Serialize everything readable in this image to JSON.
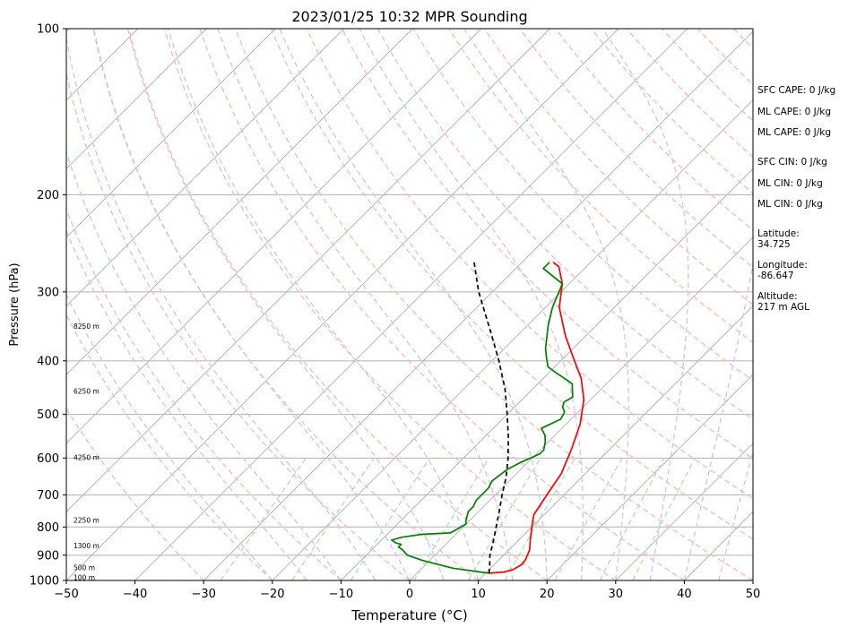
{
  "chart_data": {
    "type": "line",
    "title": "2023/01/25 10:32 MPR Sounding",
    "xlabel": "Temperature (°C)",
    "ylabel": "Pressure (hPa)",
    "xlim": [
      -50,
      50
    ],
    "ylim": [
      1000,
      100
    ],
    "y_scale": "log",
    "x_ticks": [
      "−50",
      "−40",
      "−30",
      "−20",
      "−10",
      "0",
      "10",
      "20",
      "30",
      "40",
      "50"
    ],
    "y_ticks": [
      "100",
      "200",
      "300",
      "400",
      "500",
      "600",
      "700",
      "800",
      "900",
      "1000"
    ],
    "grid": "horizontal at y ticks",
    "skew_deg": 45,
    "colors": {
      "temperature": "#ff0000",
      "dewpoint": "#008000",
      "parcel": "#000000",
      "isotherm": "#b0b0b0",
      "dry_adiabat": "#ffb6b6",
      "moist_adiabat": "#c8c8ff",
      "mixing_ratio": "#b8dcb8"
    },
    "series": [
      {
        "name": "",
        "role": "temperature",
        "color": "#ff0000",
        "points": [
          [
            10.5,
            970
          ],
          [
            12.5,
            965
          ],
          [
            13.5,
            955
          ],
          [
            14.0,
            935
          ],
          [
            13.8,
            915
          ],
          [
            13.0,
            880
          ],
          [
            11.5,
            840
          ],
          [
            10.0,
            800
          ],
          [
            8.5,
            760
          ],
          [
            7.5,
            700
          ],
          [
            6.5,
            640
          ],
          [
            4.5,
            580
          ],
          [
            2.0,
            520
          ],
          [
            -1.0,
            470
          ],
          [
            -4.5,
            430
          ],
          [
            -8.0,
            400
          ],
          [
            -13.0,
            360
          ],
          [
            -18.0,
            320
          ],
          [
            -21.0,
            290
          ],
          [
            -24.0,
            270
          ],
          [
            -25.5,
            265
          ]
        ]
      },
      {
        "name": "",
        "role": "dewpoint",
        "color": "#008000",
        "points": [
          [
            10.5,
            970
          ],
          [
            4.5,
            950
          ],
          [
            -1.0,
            920
          ],
          [
            -4.0,
            900
          ],
          [
            -5.5,
            880
          ],
          [
            -6.5,
            870
          ],
          [
            -6.5,
            860
          ],
          [
            -7.5,
            855
          ],
          [
            -8.5,
            845
          ],
          [
            -7.5,
            835
          ],
          [
            -5.0,
            825
          ],
          [
            -1.0,
            820
          ],
          [
            -0.5,
            805
          ],
          [
            0.0,
            790
          ],
          [
            -0.5,
            780
          ],
          [
            -1.5,
            750
          ],
          [
            -1.5,
            735
          ],
          [
            -2.0,
            715
          ],
          [
            -2.0,
            680
          ],
          [
            -2.5,
            660
          ],
          [
            -2.0,
            630
          ],
          [
            -1.0,
            610
          ],
          [
            0.5,
            590
          ],
          [
            0.5,
            580
          ],
          [
            -0.5,
            560
          ],
          [
            -1.5,
            545
          ],
          [
            -3.0,
            530
          ],
          [
            -1.5,
            510
          ],
          [
            -2.0,
            495
          ],
          [
            -3.0,
            485
          ],
          [
            -3.5,
            475
          ],
          [
            -3.0,
            465
          ],
          [
            -5.0,
            440
          ],
          [
            -9.0,
            420
          ],
          [
            -11.0,
            410
          ],
          [
            -12.5,
            395
          ],
          [
            -14.0,
            380
          ],
          [
            -17.0,
            345
          ],
          [
            -19.0,
            320
          ],
          [
            -21.0,
            290
          ],
          [
            -26.0,
            272
          ],
          [
            -26.0,
            265
          ]
        ]
      },
      {
        "name": "",
        "role": "parcel",
        "color": "#000000",
        "points": [
          [
            10.5,
            970
          ],
          [
            9.5,
            940
          ],
          [
            8.0,
            900
          ],
          [
            6.5,
            850
          ],
          [
            4.8,
            800
          ],
          [
            3.0,
            750
          ],
          [
            1.0,
            700
          ],
          [
            -1.0,
            650
          ],
          [
            -3.5,
            600
          ],
          [
            -6.5,
            550
          ],
          [
            -10.0,
            500
          ],
          [
            -14.0,
            450
          ],
          [
            -19.0,
            400
          ],
          [
            -25.0,
            350
          ],
          [
            -32.0,
            300
          ],
          [
            -37.0,
            265
          ]
        ]
      }
    ],
    "height_labels": [
      "8250 m",
      "6250 m",
      "4250 m",
      "2250 m",
      "1300 m",
      "500 m",
      "100 m"
    ],
    "height_label_pressures": [
      347,
      455,
      600,
      780,
      868,
      950,
      990
    ]
  },
  "info": {
    "sfc_cape": "SFC CAPE: 0 J/kg",
    "ml_cape_1": "ML CAPE: 0 J/kg",
    "ml_cape_2": "ML CAPE: 0 J/kg",
    "sfc_cin": "SFC CIN: 0 J/kg",
    "ml_cin_1": "ML CIN: 0 J/kg",
    "ml_cin_2": "ML CIN: 0 J/kg",
    "latitude_label": "Latitude:",
    "latitude_value": "34.725",
    "longitude_label": "Longitude:",
    "longitude_value": "-86.647",
    "altitude_label": "Altitude:",
    "altitude_value": "217 m AGL"
  }
}
